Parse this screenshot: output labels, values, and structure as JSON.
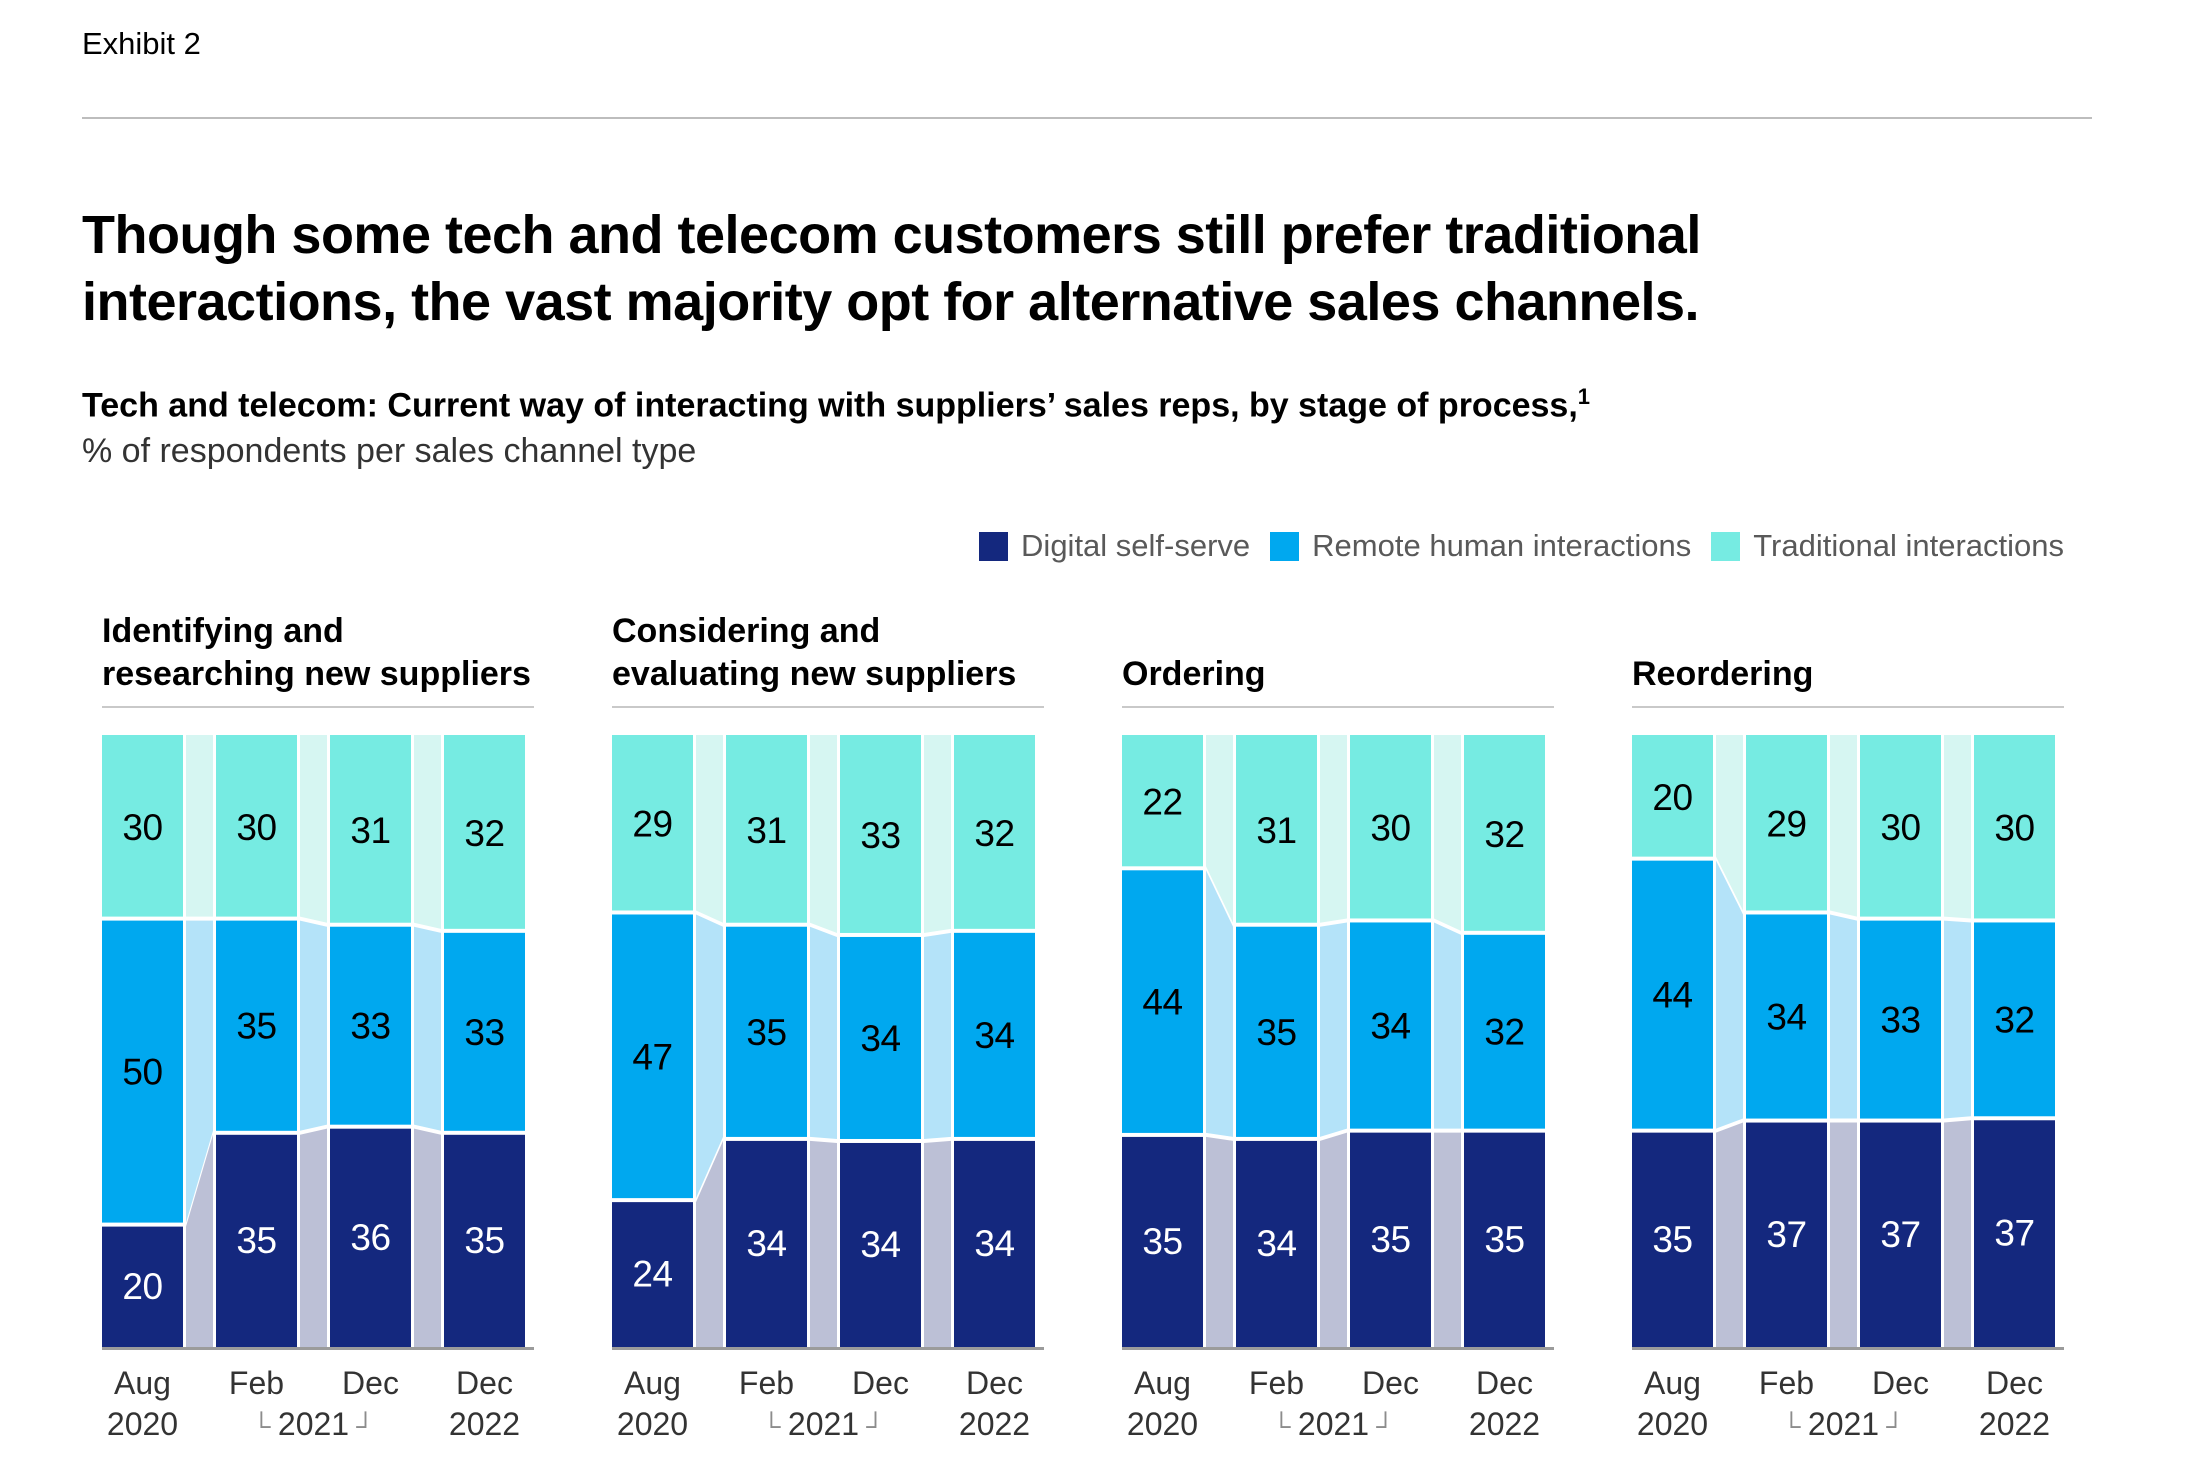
{
  "exhibit_label": "Exhibit 2",
  "title_lines": [
    "Though some tech and telecom customers still prefer traditional",
    "interactions, the vast majority opt for alternative sales channels."
  ],
  "subtitle": "Tech and telecom: Current way of interacting with suppliers’ sales reps, by stage of process,",
  "subtitle_superscript": "1",
  "unit_line": "% of respondents per sales channel type",
  "legend": [
    {
      "label": "Digital self-serve",
      "key": "digital"
    },
    {
      "label": "Remote human interactions",
      "key": "remote"
    },
    {
      "label": "Traditional interactions",
      "key": "traditional"
    }
  ],
  "colors": {
    "digital": "#14287e",
    "remote": "#00a8ef",
    "traditional": "#76ebe2",
    "digital_connector": "#bcc0d6",
    "remote_connector": "#b4e3f9",
    "traditional_connector": "#d6f6f2",
    "axis_line": "#9b9b9b",
    "rule_line": "#c9c9c9",
    "divider": "#bdbdbd",
    "label_on_dark": "#ffffff",
    "label_on_light": "#000000",
    "axis_text": "#333333",
    "bracket": "#8c8c8c",
    "legend_text": "#595959"
  },
  "x_axis": {
    "months": [
      "Aug",
      "Feb",
      "Dec",
      "Dec"
    ],
    "years": [
      "2020",
      "2021",
      "2022"
    ],
    "bracket_open": "└",
    "bracket_close": "┘"
  },
  "chart_data": {
    "type": "bar",
    "stacked": true,
    "normalized_to_100": true,
    "x": [
      "Aug 2020",
      "Feb 2021",
      "Dec 2021",
      "Dec 2022"
    ],
    "ylim": [
      0,
      100
    ],
    "grid": false,
    "legend_position": "top-right",
    "series_order_top_to_bottom": [
      "Traditional interactions",
      "Remote human interactions",
      "Digital self-serve"
    ],
    "groups": [
      {
        "title_lines": [
          "Identifying and",
          "researching new suppliers"
        ],
        "series": [
          {
            "name": "Traditional interactions",
            "key": "traditional",
            "values": [
              30,
              30,
              31,
              32
            ]
          },
          {
            "name": "Remote human interactions",
            "key": "remote",
            "values": [
              50,
              35,
              33,
              33
            ]
          },
          {
            "name": "Digital self-serve",
            "key": "digital",
            "values": [
              20,
              35,
              36,
              35
            ]
          }
        ]
      },
      {
        "title_lines": [
          "Considering and",
          "evaluating new suppliers"
        ],
        "series": [
          {
            "name": "Traditional interactions",
            "key": "traditional",
            "values": [
              29,
              31,
              33,
              32
            ]
          },
          {
            "name": "Remote human interactions",
            "key": "remote",
            "values": [
              47,
              35,
              34,
              34
            ]
          },
          {
            "name": "Digital self-serve",
            "key": "digital",
            "values": [
              24,
              34,
              34,
              34
            ]
          }
        ]
      },
      {
        "title_lines": [
          "Ordering"
        ],
        "series": [
          {
            "name": "Traditional interactions",
            "key": "traditional",
            "values": [
              22,
              31,
              30,
              32
            ]
          },
          {
            "name": "Remote human interactions",
            "key": "remote",
            "values": [
              44,
              35,
              34,
              32
            ]
          },
          {
            "name": "Digital self-serve",
            "key": "digital",
            "values": [
              35,
              34,
              35,
              35
            ]
          }
        ]
      },
      {
        "title_lines": [
          "Reordering"
        ],
        "series": [
          {
            "name": "Traditional interactions",
            "key": "traditional",
            "values": [
              20,
              29,
              30,
              30
            ]
          },
          {
            "name": "Remote human interactions",
            "key": "remote",
            "values": [
              44,
              34,
              33,
              32
            ]
          },
          {
            "name": "Digital self-serve",
            "key": "digital",
            "values": [
              35,
              37,
              37,
              37
            ]
          }
        ]
      }
    ]
  }
}
